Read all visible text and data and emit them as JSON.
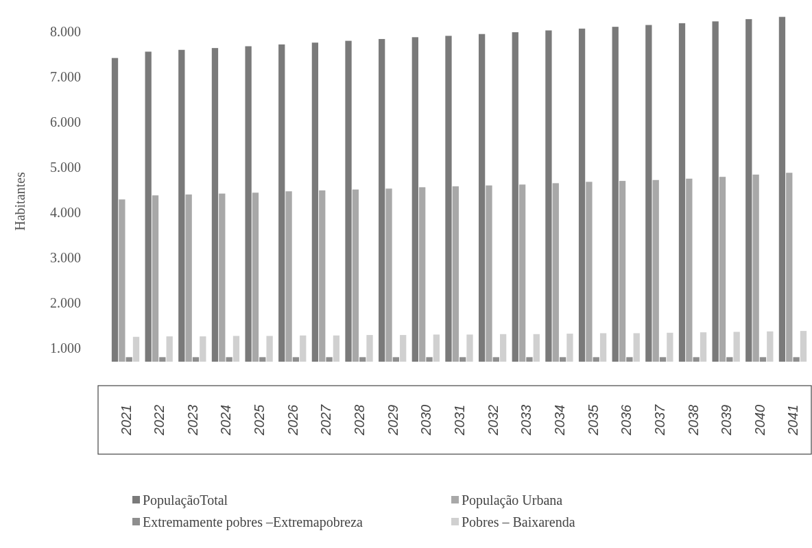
{
  "chart_data": {
    "type": "bar",
    "ylabel": "Habitantes",
    "categories": [
      "2021",
      "2022",
      "2023",
      "2024",
      "2025",
      "2026",
      "2027",
      "2028",
      "2029",
      "2030",
      "2031",
      "2032",
      "2033",
      "2034",
      "2035",
      "2036",
      "2037",
      "2038",
      "2039",
      "2040",
      "2041"
    ],
    "series": [
      {
        "name": "PopulaçãoTotal",
        "color": "#7a7a7a",
        "values": [
          7420,
          7560,
          7600,
          7640,
          7680,
          7720,
          7760,
          7800,
          7840,
          7880,
          7910,
          7950,
          7990,
          8030,
          8070,
          8110,
          8150,
          8190,
          8230,
          8280,
          8330
        ]
      },
      {
        "name": "População Urbana",
        "color": "#a8a8a8",
        "values": [
          4290,
          4380,
          4400,
          4420,
          4440,
          4470,
          4490,
          4510,
          4530,
          4560,
          4580,
          4600,
          4620,
          4650,
          4680,
          4700,
          4720,
          4750,
          4790,
          4840,
          4880
        ]
      },
      {
        "name": "Extremamente pobres –Extremapobreza",
        "color": "#8e8e8e",
        "values": [
          800,
          800,
          800,
          800,
          800,
          800,
          800,
          800,
          800,
          800,
          800,
          800,
          800,
          800,
          800,
          800,
          800,
          800,
          800,
          800,
          800
        ]
      },
      {
        "name": "Pobres – Baixarenda",
        "color": "#d0d0d0",
        "values": [
          1250,
          1260,
          1260,
          1270,
          1270,
          1280,
          1280,
          1290,
          1290,
          1300,
          1300,
          1310,
          1310,
          1320,
          1330,
          1330,
          1340,
          1350,
          1360,
          1370,
          1380
        ]
      }
    ],
    "ylim": [
      700,
      8400
    ],
    "yticks": [
      {
        "value": 1000,
        "label": "1.000"
      },
      {
        "value": 2000,
        "label": "2.000"
      },
      {
        "value": 3000,
        "label": "3.000"
      },
      {
        "value": 4000,
        "label": "4.000"
      },
      {
        "value": 5000,
        "label": "5.000"
      },
      {
        "value": 6000,
        "label": "6.000"
      },
      {
        "value": 7000,
        "label": "7.000"
      },
      {
        "value": 8000,
        "label": "8.000"
      }
    ],
    "grid": false,
    "legend": "bottom"
  }
}
